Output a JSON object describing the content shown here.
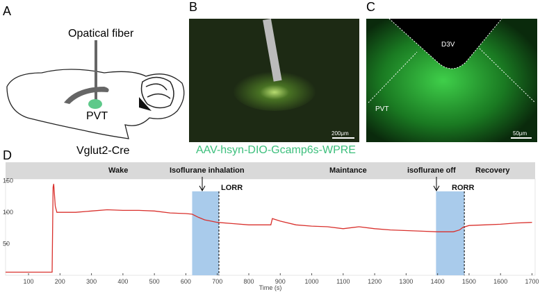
{
  "panels": {
    "a": {
      "label": "A",
      "fiber": "Opatical fiber",
      "region": "PVT",
      "mouse": "Vglut2-Cre"
    },
    "b": {
      "label": "B",
      "scale": "200μm"
    },
    "c": {
      "label": "C",
      "ventricle": "D3V",
      "region": "PVT",
      "scale": "50μm"
    },
    "virus": "AAV-hsyn-DIO-Gcamp6s-WPRE"
  },
  "chart_data": {
    "type": "line",
    "panel_label": "D",
    "xlabel": "Time (s)",
    "phases": [
      "Wake",
      "Isoflurane inhalation",
      "Maintance",
      "isoflurane off",
      "Recovery"
    ],
    "events": [
      "LORR",
      "RORR"
    ],
    "x": [
      27,
      170,
      175,
      178,
      180,
      185,
      190,
      200,
      250,
      300,
      350,
      400,
      450,
      500,
      550,
      600,
      620,
      640,
      660,
      680,
      700,
      750,
      800,
      850,
      870,
      875,
      900,
      950,
      1000,
      1050,
      1100,
      1150,
      1200,
      1250,
      1300,
      1350,
      1400,
      1450,
      1470,
      1480,
      1500,
      1550,
      1600,
      1650,
      1700
    ],
    "values": [
      5,
      5,
      5,
      140,
      145,
      110,
      100,
      100,
      100,
      102,
      104,
      103,
      103,
      102,
      99,
      98,
      97,
      92,
      88,
      86,
      84,
      82,
      80,
      80,
      80,
      90,
      86,
      80,
      78,
      77,
      74,
      77,
      74,
      72,
      71,
      70,
      69,
      69,
      72,
      76,
      79,
      80,
      81,
      83,
      84
    ],
    "color": "#d9302c",
    "spans": [
      [
        620,
        705
      ],
      [
        1395,
        1485
      ]
    ],
    "span_color": "#a9cbeb",
    "xlim": [
      27,
      1710
    ],
    "ylim": [
      0,
      153
    ],
    "xticks": [
      100,
      200,
      300,
      400,
      500,
      600,
      700,
      800,
      900,
      1000,
      1100,
      1200,
      1300,
      1400,
      1500,
      1600,
      1700
    ],
    "yticks": [
      50,
      100,
      150
    ]
  }
}
